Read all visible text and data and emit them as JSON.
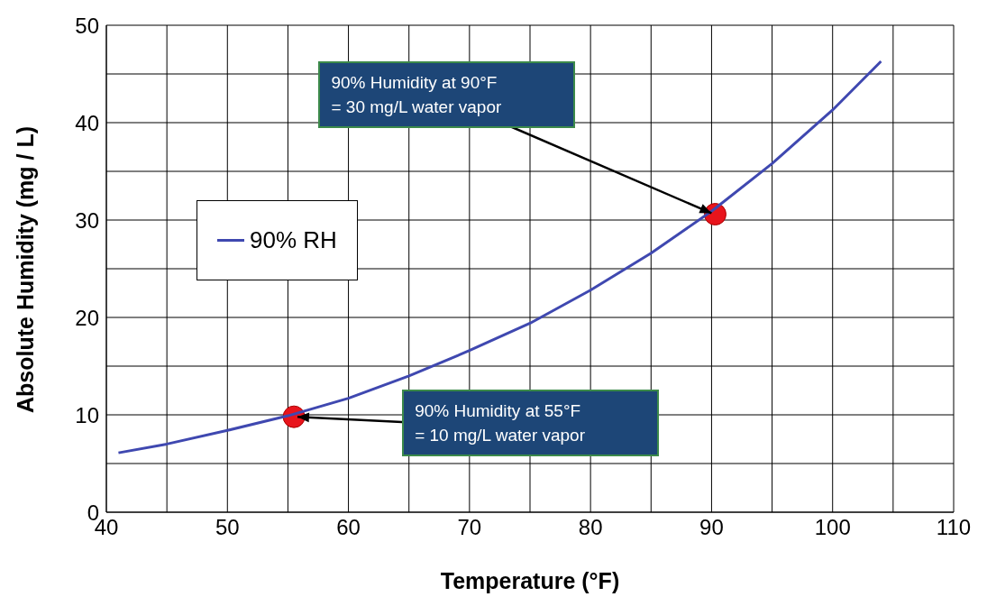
{
  "chart_data": {
    "type": "line",
    "xlabel": "Temperature (°F)",
    "ylabel": "Absolute Humidity (mg / L)",
    "xlim": [
      40,
      110
    ],
    "ylim": [
      0,
      50
    ],
    "xticks": [
      40,
      {
        "value": 45,
        "label": null
      },
      50,
      {
        "value": 55,
        "label": null
      },
      60,
      {
        "value": 65,
        "label": null
      },
      70,
      {
        "value": 75,
        "label": null
      },
      80,
      {
        "value": 85,
        "label": null
      },
      90,
      {
        "value": 95,
        "label": null
      },
      100,
      {
        "value": 105,
        "label": null
      },
      110
    ],
    "yticks": [
      0,
      {
        "value": 5,
        "label": null
      },
      10,
      {
        "value": 15,
        "label": null
      },
      20,
      {
        "value": 25,
        "label": null
      },
      30,
      {
        "value": 35,
        "label": null
      },
      40,
      {
        "value": 45,
        "label": null
      },
      50
    ],
    "grid": true,
    "legend": "left",
    "line_style": "solid",
    "series": [
      {
        "name": "90% RH",
        "type": "line",
        "color": "#3f48b0",
        "marker": "none",
        "x": [
          41,
          45,
          50,
          55,
          60,
          65,
          70,
          75,
          80,
          85,
          90,
          95,
          100,
          104
        ],
        "values": [
          6.1,
          7.0,
          8.4,
          9.9,
          11.7,
          14.0,
          16.6,
          19.4,
          22.8,
          26.6,
          30.9,
          35.8,
          41.3,
          46.3
        ]
      },
      {
        "type": "scatter",
        "color": "#e8141c",
        "marker": "circle",
        "x": [
          55.5,
          90.3
        ],
        "values": [
          9.8,
          30.6
        ]
      }
    ],
    "annotations": [
      {
        "text": "90% Humidity at 55°F\n= 10 mg/L water vapor",
        "x": 55.5,
        "y": 9.8
      },
      {
        "text": "90% Humidity at 90°F\n= 30 mg/L water vapor",
        "x": 90.3,
        "y": 30.6
      }
    ]
  }
}
